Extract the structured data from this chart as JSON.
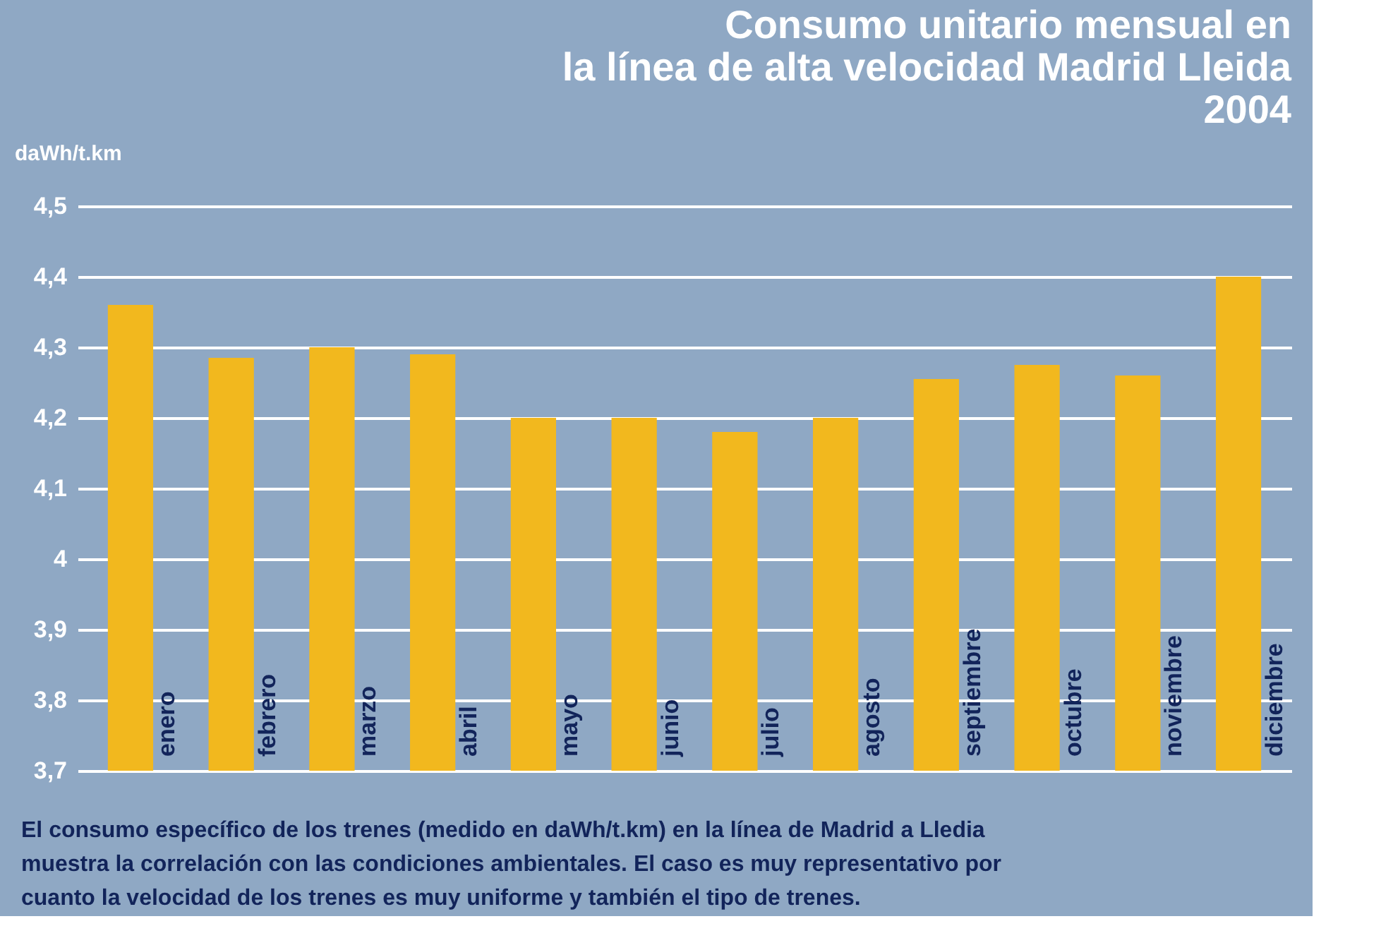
{
  "chart_data": {
    "type": "bar",
    "title": [
      "Consumo unitario mensual en",
      "la línea de alta velocidad Madrid Lleida",
      "2004"
    ],
    "ylabel": "daWh/t.km",
    "categories": [
      "enero",
      "febrero",
      "marzo",
      "abril",
      "mayo",
      "junio",
      "julio",
      "agosto",
      "septiembre",
      "octubre",
      "noviembre",
      "diciembre"
    ],
    "values": [
      4.36,
      4.285,
      4.3,
      4.29,
      4.2,
      4.2,
      4.18,
      4.2,
      4.255,
      4.275,
      4.26,
      4.4
    ],
    "color": "#f2b81e",
    "ylim": [
      3.7,
      4.5
    ],
    "yticks": [
      {
        "value": 3.7,
        "label": "3,7"
      },
      {
        "value": 3.8,
        "label": "3,8"
      },
      {
        "value": 3.9,
        "label": "3,9"
      },
      {
        "value": 4,
        "label": "4"
      },
      {
        "value": 4.1,
        "label": "4,1"
      },
      {
        "value": 4.2,
        "label": "4,2"
      },
      {
        "value": 4.3,
        "label": "4,3"
      },
      {
        "value": 4.4,
        "label": "4,4"
      },
      {
        "value": 4.5,
        "label": "4,5"
      }
    ],
    "grid": "y",
    "annotations": [
      "El consumo específico de los trenes (medido en daWh/t.km) en la línea de Madrid a Lledia muestra la correlación con las condiciones ambientales. El caso es muy representativo por cuanto la velocidad de los trenes es muy uniforme y también el tipo de trenes."
    ]
  }
}
